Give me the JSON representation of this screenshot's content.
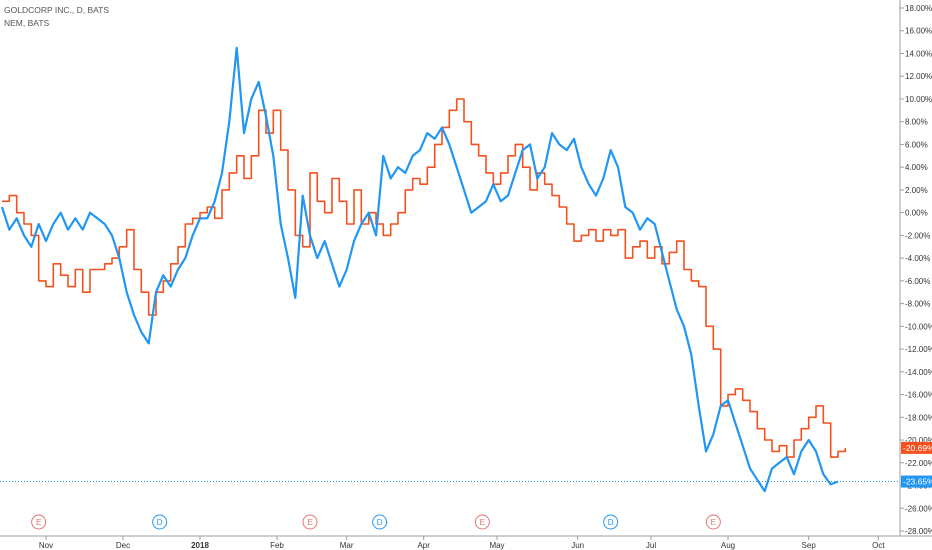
{
  "legend": {
    "series1": "GOLDCORP INC., D, BATS",
    "series2": "NEM, BATS"
  },
  "chart_data": {
    "type": "line",
    "ylim": [
      -28,
      18
    ],
    "yticks": [
      18,
      16,
      14,
      12,
      10,
      8,
      6,
      4,
      2,
      0,
      -2,
      -4,
      -6,
      -8,
      -10,
      -12,
      -14,
      -16,
      -18,
      -20,
      -22,
      -24,
      -26,
      -28
    ],
    "ytick_labels": [
      "18.00%",
      "16.00%",
      "14.00%",
      "12.00%",
      "10.00%",
      "8.00%",
      "6.00%",
      "4.00%",
      "2.00%",
      "0.00%",
      "-2.00%",
      "-4.00%",
      "-6.00%",
      "-8.00%",
      "-10.00%",
      "-12.00%",
      "-14.00%",
      "-16.00%",
      "-18.00%",
      "-20.00%",
      "-22.00%",
      "-24.00%",
      "-26.00%",
      "-28.00%"
    ],
    "xlim": [
      0,
      240
    ],
    "xticks": [
      {
        "x": 12,
        "label": "Nov",
        "bold": false
      },
      {
        "x": 33,
        "label": "Dec",
        "bold": false
      },
      {
        "x": 54,
        "label": "2018",
        "bold": true
      },
      {
        "x": 75,
        "label": "Feb",
        "bold": false
      },
      {
        "x": 94,
        "label": "Mar",
        "bold": false
      },
      {
        "x": 115,
        "label": "Apr",
        "bold": false
      },
      {
        "x": 135,
        "label": "May",
        "bold": false
      },
      {
        "x": 157,
        "label": "Jun",
        "bold": false
      },
      {
        "x": 177,
        "label": "Jul",
        "bold": false
      },
      {
        "x": 198,
        "label": "Aug",
        "bold": false
      },
      {
        "x": 220,
        "label": "Sep",
        "bold": false
      },
      {
        "x": 239,
        "label": "Oct",
        "bold": false
      }
    ],
    "events": [
      {
        "x": 10,
        "type": "E",
        "color": "#e57373"
      },
      {
        "x": 43,
        "type": "D",
        "color": "#2196f3"
      },
      {
        "x": 84,
        "type": "E",
        "color": "#e57373"
      },
      {
        "x": 103,
        "type": "D",
        "color": "#2196f3"
      },
      {
        "x": 131,
        "type": "E",
        "color": "#e57373"
      },
      {
        "x": 166,
        "type": "D",
        "color": "#2196f3"
      },
      {
        "x": 194,
        "type": "E",
        "color": "#e57373"
      }
    ],
    "series": [
      {
        "name": "GOLDCORP INC., D, BATS",
        "color": "#f4511e",
        "style": "step",
        "last_value": -20.69,
        "last_label": "-20.69%",
        "points": [
          [
            0,
            1.0
          ],
          [
            2,
            1.5
          ],
          [
            4,
            0.0
          ],
          [
            6,
            -1.0
          ],
          [
            8,
            -2.0
          ],
          [
            10,
            -6.0
          ],
          [
            12,
            -6.5
          ],
          [
            14,
            -4.5
          ],
          [
            16,
            -5.5
          ],
          [
            18,
            -6.5
          ],
          [
            20,
            -5.0
          ],
          [
            22,
            -7.0
          ],
          [
            24,
            -5.0
          ],
          [
            26,
            -5.0
          ],
          [
            28,
            -4.5
          ],
          [
            30,
            -4.0
          ],
          [
            32,
            -3.0
          ],
          [
            34,
            -1.5
          ],
          [
            36,
            -5.0
          ],
          [
            38,
            -7.0
          ],
          [
            40,
            -9.0
          ],
          [
            42,
            -7.0
          ],
          [
            44,
            -6.0
          ],
          [
            46,
            -4.5
          ],
          [
            48,
            -3.0
          ],
          [
            50,
            -1.0
          ],
          [
            52,
            -0.5
          ],
          [
            54,
            0.0
          ],
          [
            56,
            0.5
          ],
          [
            58,
            -0.5
          ],
          [
            60,
            2.0
          ],
          [
            62,
            3.5
          ],
          [
            64,
            5.0
          ],
          [
            66,
            3.0
          ],
          [
            68,
            5.0
          ],
          [
            70,
            9.0
          ],
          [
            72,
            7.0
          ],
          [
            74,
            9.0
          ],
          [
            76,
            5.5
          ],
          [
            78,
            2.0
          ],
          [
            80,
            -2.0
          ],
          [
            82,
            -3.0
          ],
          [
            84,
            3.5
          ],
          [
            86,
            1.0
          ],
          [
            88,
            0.0
          ],
          [
            90,
            3.0
          ],
          [
            92,
            1.0
          ],
          [
            94,
            -1.0
          ],
          [
            96,
            2.0
          ],
          [
            98,
            -1.0
          ],
          [
            100,
            0.0
          ],
          [
            102,
            -1.0
          ],
          [
            104,
            -2.0
          ],
          [
            106,
            -1.0
          ],
          [
            108,
            0.0
          ],
          [
            110,
            2.0
          ],
          [
            112,
            3.0
          ],
          [
            114,
            2.5
          ],
          [
            116,
            4.0
          ],
          [
            118,
            6.0
          ],
          [
            120,
            7.5
          ],
          [
            122,
            9.0
          ],
          [
            124,
            10.0
          ],
          [
            126,
            8.0
          ],
          [
            128,
            6.0
          ],
          [
            130,
            5.0
          ],
          [
            132,
            3.5
          ],
          [
            134,
            2.5
          ],
          [
            136,
            3.5
          ],
          [
            138,
            5.0
          ],
          [
            140,
            6.0
          ],
          [
            142,
            4.0
          ],
          [
            144,
            2.0
          ],
          [
            146,
            3.5
          ],
          [
            148,
            2.5
          ],
          [
            150,
            1.5
          ],
          [
            152,
            0.5
          ],
          [
            154,
            -1.0
          ],
          [
            156,
            -2.5
          ],
          [
            158,
            -2.0
          ],
          [
            160,
            -1.5
          ],
          [
            162,
            -2.5
          ],
          [
            164,
            -1.5
          ],
          [
            166,
            -2.0
          ],
          [
            168,
            -1.5
          ],
          [
            170,
            -4.0
          ],
          [
            172,
            -3.0
          ],
          [
            174,
            -2.5
          ],
          [
            176,
            -4.0
          ],
          [
            178,
            -3.0
          ],
          [
            180,
            -4.5
          ],
          [
            182,
            -3.5
          ],
          [
            184,
            -2.5
          ],
          [
            186,
            -5.0
          ],
          [
            188,
            -6.0
          ],
          [
            190,
            -6.5
          ],
          [
            192,
            -10.0
          ],
          [
            194,
            -12.0
          ],
          [
            196,
            -17.0
          ],
          [
            198,
            -16.0
          ],
          [
            200,
            -15.5
          ],
          [
            202,
            -16.5
          ],
          [
            204,
            -17.5
          ],
          [
            206,
            -19.0
          ],
          [
            208,
            -20.0
          ],
          [
            210,
            -21.0
          ],
          [
            212,
            -20.5
          ],
          [
            214,
            -21.5
          ],
          [
            216,
            -20.0
          ],
          [
            218,
            -19.0
          ],
          [
            220,
            -18.0
          ],
          [
            222,
            -17.0
          ],
          [
            224,
            -18.5
          ],
          [
            226,
            -21.5
          ],
          [
            228,
            -21.0
          ],
          [
            230,
            -20.69
          ]
        ]
      },
      {
        "name": "NEM, BATS",
        "color": "#2196f3",
        "style": "line",
        "last_value": -23.65,
        "last_label": "-23.65%",
        "points": [
          [
            0,
            0.5
          ],
          [
            2,
            -1.5
          ],
          [
            4,
            -0.5
          ],
          [
            6,
            -2.0
          ],
          [
            8,
            -3.0
          ],
          [
            10,
            -1.0
          ],
          [
            12,
            -2.5
          ],
          [
            14,
            -1.0
          ],
          [
            16,
            0.0
          ],
          [
            18,
            -1.5
          ],
          [
            20,
            -0.5
          ],
          [
            22,
            -1.5
          ],
          [
            24,
            0.0
          ],
          [
            26,
            -0.5
          ],
          [
            28,
            -1.0
          ],
          [
            30,
            -2.0
          ],
          [
            32,
            -4.0
          ],
          [
            34,
            -7.0
          ],
          [
            36,
            -9.0
          ],
          [
            38,
            -10.5
          ],
          [
            40,
            -11.5
          ],
          [
            42,
            -7.0
          ],
          [
            44,
            -5.5
          ],
          [
            46,
            -6.5
          ],
          [
            48,
            -5.0
          ],
          [
            50,
            -4.0
          ],
          [
            52,
            -2.0
          ],
          [
            54,
            -0.5
          ],
          [
            56,
            -0.5
          ],
          [
            58,
            1.0
          ],
          [
            60,
            3.5
          ],
          [
            62,
            8.0
          ],
          [
            64,
            14.5
          ],
          [
            66,
            7.0
          ],
          [
            68,
            10.0
          ],
          [
            70,
            11.5
          ],
          [
            72,
            8.5
          ],
          [
            74,
            5.0
          ],
          [
            76,
            -1.0
          ],
          [
            78,
            -4.0
          ],
          [
            80,
            -7.5
          ],
          [
            82,
            1.5
          ],
          [
            84,
            -2.0
          ],
          [
            86,
            -4.0
          ],
          [
            88,
            -2.5
          ],
          [
            90,
            -4.5
          ],
          [
            92,
            -6.5
          ],
          [
            94,
            -5.0
          ],
          [
            96,
            -2.5
          ],
          [
            98,
            -1.0
          ],
          [
            100,
            0.0
          ],
          [
            102,
            -2.0
          ],
          [
            104,
            5.0
          ],
          [
            106,
            3.0
          ],
          [
            108,
            4.0
          ],
          [
            110,
            3.5
          ],
          [
            112,
            5.0
          ],
          [
            114,
            5.5
          ],
          [
            116,
            7.0
          ],
          [
            118,
            6.5
          ],
          [
            120,
            7.5
          ],
          [
            122,
            6.0
          ],
          [
            124,
            4.0
          ],
          [
            126,
            2.0
          ],
          [
            128,
            0.0
          ],
          [
            130,
            0.5
          ],
          [
            132,
            1.0
          ],
          [
            134,
            2.5
          ],
          [
            136,
            1.0
          ],
          [
            138,
            1.5
          ],
          [
            140,
            3.5
          ],
          [
            142,
            5.5
          ],
          [
            144,
            6.0
          ],
          [
            146,
            3.0
          ],
          [
            148,
            4.0
          ],
          [
            150,
            7.0
          ],
          [
            152,
            6.0
          ],
          [
            154,
            5.5
          ],
          [
            156,
            6.5
          ],
          [
            158,
            4.0
          ],
          [
            160,
            2.5
          ],
          [
            162,
            1.5
          ],
          [
            164,
            3.0
          ],
          [
            166,
            5.5
          ],
          [
            168,
            4.0
          ],
          [
            170,
            0.5
          ],
          [
            172,
            0.0
          ],
          [
            174,
            -1.5
          ],
          [
            176,
            -0.5
          ],
          [
            178,
            -1.0
          ],
          [
            180,
            -3.5
          ],
          [
            182,
            -6.0
          ],
          [
            184,
            -8.5
          ],
          [
            186,
            -10.0
          ],
          [
            188,
            -12.5
          ],
          [
            190,
            -17.0
          ],
          [
            192,
            -21.0
          ],
          [
            194,
            -19.5
          ],
          [
            196,
            -17.0
          ],
          [
            198,
            -16.5
          ],
          [
            200,
            -18.5
          ],
          [
            202,
            -20.5
          ],
          [
            204,
            -22.5
          ],
          [
            206,
            -23.5
          ],
          [
            208,
            -24.5
          ],
          [
            210,
            -22.5
          ],
          [
            212,
            -22.0
          ],
          [
            214,
            -21.5
          ],
          [
            216,
            -23.0
          ],
          [
            218,
            -21.0
          ],
          [
            220,
            -20.0
          ],
          [
            222,
            -21.0
          ],
          [
            224,
            -23.0
          ],
          [
            226,
            -23.9
          ],
          [
            228,
            -23.65
          ]
        ]
      }
    ]
  }
}
